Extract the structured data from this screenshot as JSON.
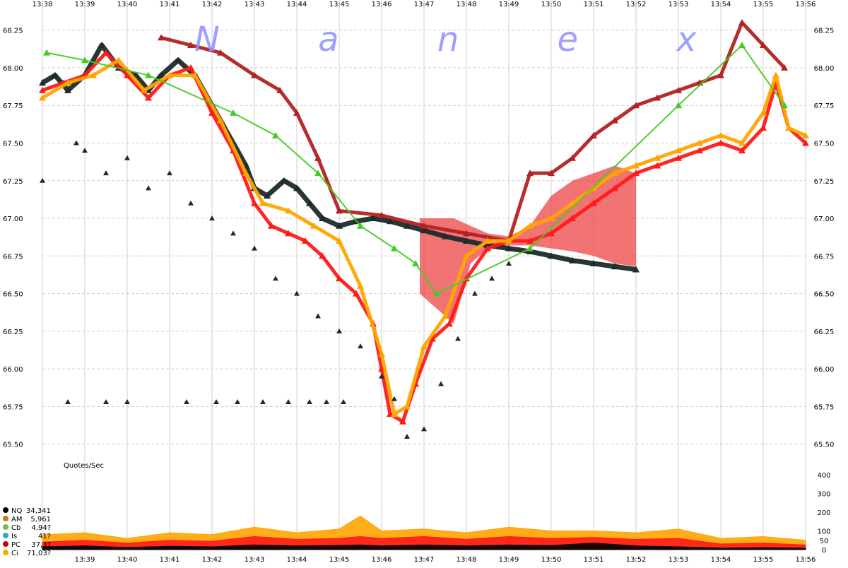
{
  "watermark": "N a n e x",
  "chart_data": [
    {
      "type": "scatter",
      "name": "price-panel",
      "x_ticks_top": [
        "13:38",
        "13:39",
        "13:40",
        "13:41",
        "13:42",
        "13:43",
        "13:44",
        "13:45",
        "13:46",
        "13:47",
        "13:48",
        "13:49",
        "13:50",
        "13:51",
        "13:52",
        "13:53",
        "13:54",
        "13:55",
        "13:56"
      ],
      "y_ticks": [
        "68.25",
        "68.00",
        "67.75",
        "67.50",
        "67.25",
        "67.00",
        "66.75",
        "66.50",
        "66.25",
        "66.00",
        "65.75",
        "65.50"
      ],
      "ylim": [
        65.4,
        68.3
      ],
      "xlim_minutes": [
        0,
        18
      ],
      "grid": true,
      "series": [
        {
          "color": "#1c2b2b",
          "points": [
            [
              0.0,
              67.9
            ],
            [
              0.3,
              67.95
            ],
            [
              0.6,
              67.85
            ],
            [
              1.0,
              67.95
            ],
            [
              1.4,
              68.15
            ],
            [
              1.8,
              68.0
            ],
            [
              2.2,
              67.95
            ],
            [
              2.5,
              67.85
            ],
            [
              2.8,
              67.95
            ],
            [
              3.2,
              68.05
            ],
            [
              3.6,
              67.95
            ],
            [
              4.0,
              67.75
            ],
            [
              4.4,
              67.55
            ],
            [
              4.8,
              67.35
            ],
            [
              5.0,
              67.2
            ],
            [
              5.3,
              67.15
            ],
            [
              5.7,
              67.25
            ],
            [
              6.0,
              67.2
            ],
            [
              6.3,
              67.1
            ],
            [
              6.6,
              67.0
            ],
            [
              7.0,
              66.95
            ],
            [
              7.4,
              66.98
            ],
            [
              7.8,
              67.0
            ],
            [
              8.2,
              66.98
            ],
            [
              8.6,
              66.95
            ],
            [
              9.0,
              66.92
            ],
            [
              9.5,
              66.88
            ],
            [
              10.0,
              66.85
            ],
            [
              10.5,
              66.82
            ],
            [
              11.0,
              66.8
            ],
            [
              11.5,
              66.78
            ],
            [
              12.0,
              66.75
            ],
            [
              12.5,
              66.72
            ],
            [
              13.0,
              66.7
            ],
            [
              13.5,
              66.68
            ],
            [
              14.0,
              66.66
            ]
          ]
        },
        {
          "color": "#ff1a1a",
          "points": [
            [
              0.0,
              67.85
            ],
            [
              0.5,
              67.9
            ],
            [
              1.0,
              67.95
            ],
            [
              1.5,
              68.1
            ],
            [
              2.0,
              67.95
            ],
            [
              2.5,
              67.8
            ],
            [
              3.0,
              67.95
            ],
            [
              3.5,
              68.0
            ],
            [
              4.0,
              67.7
            ],
            [
              4.5,
              67.45
            ],
            [
              5.0,
              67.1
            ],
            [
              5.4,
              66.95
            ],
            [
              5.8,
              66.9
            ],
            [
              6.2,
              66.85
            ],
            [
              6.6,
              66.75
            ],
            [
              7.0,
              66.6
            ],
            [
              7.4,
              66.5
            ],
            [
              7.8,
              66.3
            ],
            [
              8.0,
              66.0
            ],
            [
              8.2,
              65.7
            ],
            [
              8.5,
              65.65
            ],
            [
              8.8,
              65.9
            ],
            [
              9.2,
              66.2
            ],
            [
              9.6,
              66.3
            ],
            [
              10.0,
              66.6
            ],
            [
              10.5,
              66.8
            ],
            [
              11.0,
              66.85
            ],
            [
              11.5,
              66.85
            ],
            [
              12.0,
              66.9
            ],
            [
              12.5,
              67.0
            ],
            [
              13.0,
              67.1
            ],
            [
              13.5,
              67.2
            ],
            [
              14.0,
              67.3
            ],
            [
              14.5,
              67.35
            ],
            [
              15.0,
              67.4
            ],
            [
              15.5,
              67.45
            ],
            [
              16.0,
              67.5
            ],
            [
              16.5,
              67.45
            ],
            [
              17.0,
              67.6
            ],
            [
              17.3,
              67.9
            ],
            [
              17.6,
              67.6
            ],
            [
              18.0,
              67.5
            ]
          ]
        },
        {
          "color": "#b22222",
          "points": [
            [
              2.8,
              68.2
            ],
            [
              3.5,
              68.15
            ],
            [
              4.2,
              68.1
            ],
            [
              5.0,
              67.95
            ],
            [
              5.6,
              67.85
            ],
            [
              6.0,
              67.7
            ],
            [
              6.5,
              67.4
            ],
            [
              7.0,
              67.05
            ],
            [
              8.0,
              67.02
            ],
            [
              9.0,
              66.95
            ],
            [
              10.0,
              66.9
            ],
            [
              11.0,
              66.85
            ],
            [
              11.5,
              67.3
            ],
            [
              12.0,
              67.3
            ],
            [
              12.5,
              67.4
            ],
            [
              13.0,
              67.55
            ],
            [
              13.5,
              67.65
            ],
            [
              14.0,
              67.75
            ],
            [
              14.5,
              67.8
            ],
            [
              15.0,
              67.85
            ],
            [
              15.5,
              67.9
            ],
            [
              16.0,
              67.95
            ],
            [
              16.5,
              68.3
            ],
            [
              17.0,
              68.15
            ],
            [
              17.5,
              68.0
            ]
          ]
        },
        {
          "color": "#ffa500",
          "points": [
            [
              0.0,
              67.8
            ],
            [
              0.6,
              67.9
            ],
            [
              1.2,
              67.95
            ],
            [
              1.8,
              68.05
            ],
            [
              2.4,
              67.85
            ],
            [
              3.0,
              67.95
            ],
            [
              3.6,
              67.95
            ],
            [
              4.2,
              67.65
            ],
            [
              4.8,
              67.3
            ],
            [
              5.2,
              67.1
            ],
            [
              5.8,
              67.05
            ],
            [
              6.4,
              66.95
            ],
            [
              7.0,
              66.85
            ],
            [
              7.5,
              66.55
            ],
            [
              8.0,
              66.1
            ],
            [
              8.3,
              65.7
            ],
            [
              8.6,
              65.75
            ],
            [
              9.0,
              66.15
            ],
            [
              9.5,
              66.35
            ],
            [
              10.0,
              66.75
            ],
            [
              10.5,
              66.85
            ],
            [
              11.0,
              66.85
            ],
            [
              11.5,
              66.95
            ],
            [
              12.0,
              67.0
            ],
            [
              12.5,
              67.1
            ],
            [
              13.0,
              67.2
            ],
            [
              13.5,
              67.3
            ],
            [
              14.0,
              67.35
            ],
            [
              14.5,
              67.4
            ],
            [
              15.0,
              67.45
            ],
            [
              15.5,
              67.5
            ],
            [
              16.0,
              67.55
            ],
            [
              16.5,
              67.5
            ],
            [
              17.0,
              67.7
            ],
            [
              17.3,
              67.95
            ],
            [
              17.6,
              67.6
            ],
            [
              18.0,
              67.55
            ]
          ]
        },
        {
          "color": "#44cc22",
          "points": [
            [
              0.1,
              68.1
            ],
            [
              1.0,
              68.05
            ],
            [
              2.5,
              67.95
            ],
            [
              4.5,
              67.7
            ],
            [
              5.5,
              67.55
            ],
            [
              6.5,
              67.3
            ],
            [
              7.5,
              66.95
            ],
            [
              8.3,
              66.8
            ],
            [
              8.8,
              66.7
            ],
            [
              9.3,
              66.5
            ],
            [
              11.5,
              66.8
            ],
            [
              15.0,
              67.75
            ],
            [
              16.5,
              68.15
            ],
            [
              17.5,
              67.75
            ]
          ]
        }
      ],
      "bands": [
        {
          "color": "#ee4444",
          "opacity": 0.75,
          "x": [
            8.9,
            9.3,
            9.7,
            10.1,
            10.5,
            11.0,
            11.5,
            12.0,
            12.5,
            13.0,
            13.5,
            14.0
          ],
          "upper": [
            67.0,
            67.0,
            67.0,
            66.95,
            66.9,
            66.88,
            66.95,
            67.15,
            67.25,
            67.3,
            67.35,
            67.3
          ],
          "lower": [
            66.5,
            66.4,
            66.3,
            66.7,
            66.8,
            66.82,
            66.82,
            66.8,
            66.78,
            66.75,
            66.7,
            66.68
          ]
        }
      ],
      "markers": {
        "shape": "triangle",
        "color": "#1c2b2b",
        "points": [
          [
            0.0,
            67.25
          ],
          [
            0.8,
            67.5
          ],
          [
            1.0,
            67.45
          ],
          [
            1.5,
            67.3
          ],
          [
            2.0,
            67.4
          ],
          [
            2.5,
            67.2
          ],
          [
            3.0,
            67.3
          ],
          [
            3.5,
            67.1
          ],
          [
            4.0,
            67.0
          ],
          [
            4.5,
            66.9
          ],
          [
            5.0,
            66.8
          ],
          [
            5.5,
            66.6
          ],
          [
            6.0,
            66.5
          ],
          [
            6.5,
            66.35
          ],
          [
            7.0,
            66.25
          ],
          [
            7.5,
            66.15
          ],
          [
            8.0,
            65.95
          ],
          [
            8.3,
            65.8
          ],
          [
            8.6,
            65.55
          ],
          [
            9.0,
            65.6
          ],
          [
            9.4,
            65.9
          ],
          [
            9.8,
            66.2
          ],
          [
            10.2,
            66.5
          ],
          [
            10.6,
            66.6
          ],
          [
            11.0,
            66.7
          ],
          [
            0.6,
            65.78
          ],
          [
            1.5,
            65.78
          ],
          [
            2.0,
            65.78
          ],
          [
            3.4,
            65.78
          ],
          [
            4.1,
            65.78
          ],
          [
            4.6,
            65.78
          ],
          [
            5.2,
            65.78
          ],
          [
            5.8,
            65.78
          ],
          [
            6.3,
            65.78
          ],
          [
            6.7,
            65.78
          ],
          [
            7.1,
            65.78
          ]
        ]
      }
    },
    {
      "type": "area",
      "name": "quotes-per-sec",
      "title": "Quotes/Sec",
      "y_ticks": [
        "400",
        "300",
        "200",
        "100",
        "50",
        "0"
      ],
      "y_tick_values": [
        400,
        300,
        200,
        100,
        50,
        0
      ],
      "x_ticks_bottom": [
        "13:39",
        "13:40",
        "13:41",
        "13:42",
        "13:43",
        "13:44",
        "13:45",
        "13:46",
        "13:47",
        "13:48",
        "13:49",
        "13:50",
        "13:51",
        "13:52",
        "13:53",
        "13:54",
        "13:55",
        "13:56"
      ],
      "x_ticks_bottom_minutes": [
        1,
        2,
        3,
        4,
        5,
        6,
        7,
        8,
        9,
        10,
        11,
        12,
        13,
        14,
        15,
        16,
        17,
        18
      ],
      "x": [
        0,
        1,
        2,
        3,
        4,
        5,
        6,
        7,
        7.5,
        8,
        9,
        10,
        11,
        12,
        13,
        14,
        15,
        16,
        17,
        18
      ],
      "series": [
        {
          "name": "Ci",
          "color": "#ffa500",
          "values": [
            80,
            90,
            60,
            90,
            80,
            120,
            90,
            110,
            180,
            100,
            110,
            90,
            120,
            100,
            100,
            90,
            110,
            60,
            70,
            50
          ]
        },
        {
          "name": "PC",
          "color": "#ff1a1a",
          "values": [
            40,
            50,
            35,
            50,
            45,
            70,
            55,
            60,
            70,
            60,
            70,
            55,
            70,
            60,
            65,
            55,
            60,
            30,
            35,
            25
          ]
        },
        {
          "name": "NQ",
          "color": "#000000",
          "values": [
            15,
            20,
            12,
            18,
            15,
            25,
            20,
            22,
            25,
            20,
            25,
            20,
            25,
            22,
            35,
            20,
            15,
            8,
            10,
            8
          ]
        }
      ],
      "legend": {
        "placement": "left",
        "entries": [
          {
            "name": "NQ",
            "total": "34,341",
            "color": "#000000"
          },
          {
            "name": "AM",
            "total": "5,961",
            "color": "#cc7a00"
          },
          {
            "name": "Cb",
            "total": "4,94?",
            "color": "#7ab648"
          },
          {
            "name": "Is",
            "total": "41?",
            "color": "#33aaaa"
          },
          {
            "name": "PC",
            "total": "37,3?",
            "color": "#cc0000"
          },
          {
            "name": "Ci",
            "total": "71,03?",
            "color": "#ffa500"
          }
        ]
      }
    }
  ]
}
